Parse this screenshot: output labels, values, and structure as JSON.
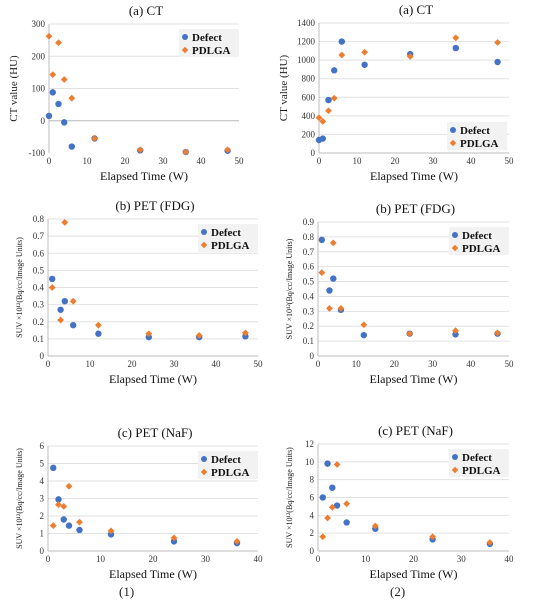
{
  "figure": {
    "column_labels": [
      "(1)",
      "(2)"
    ],
    "colors": {
      "Defect": "#4472C4",
      "PDLGA": "#ED7D31"
    }
  },
  "chart_data": [
    {
      "id": "ct-1",
      "type": "scatter",
      "title": "(a) CT",
      "xlabel": "Elapsed Time (W)",
      "ylabel": "CT value (HU)",
      "xlim": [
        0,
        50
      ],
      "ylim": [
        -100,
        300
      ],
      "xticks": [
        0,
        10,
        20,
        30,
        40,
        50
      ],
      "yticks": [
        -100,
        0,
        100,
        200,
        300
      ],
      "legend": "top-right",
      "series": [
        {
          "name": "Defect",
          "marker": "circle",
          "points": [
            [
              0,
              15
            ],
            [
              1,
              88
            ],
            [
              2.5,
              52
            ],
            [
              4,
              -5
            ],
            [
              6,
              -80
            ],
            [
              12,
              -55
            ],
            [
              24,
              -92
            ],
            [
              36,
              -97
            ],
            [
              47,
              -93
            ]
          ]
        },
        {
          "name": "PDLGA",
          "marker": "diamond",
          "points": [
            [
              0,
              262
            ],
            [
              1,
              143
            ],
            [
              2.5,
              242
            ],
            [
              4,
              128
            ],
            [
              6,
              70
            ],
            [
              12,
              -55
            ],
            [
              24,
              -90
            ],
            [
              36,
              -97
            ],
            [
              47,
              -90
            ]
          ]
        }
      ]
    },
    {
      "id": "ct-2",
      "type": "scatter",
      "title": "(a) CT",
      "xlabel": "Elapsed Time (W)",
      "ylabel": "CT value (HU)",
      "xlim": [
        0,
        50
      ],
      "ylim": [
        0,
        1400
      ],
      "xticks": [
        0,
        10,
        20,
        30,
        40,
        50
      ],
      "yticks": [
        0,
        200,
        400,
        600,
        800,
        1000,
        1200,
        1400
      ],
      "legend": "bottom-right",
      "series": [
        {
          "name": "Defect",
          "marker": "circle",
          "points": [
            [
              0,
              140
            ],
            [
              1,
              155
            ],
            [
              2.5,
              570
            ],
            [
              4,
              890
            ],
            [
              6,
              1200
            ],
            [
              12,
              950
            ],
            [
              24,
              1065
            ],
            [
              36,
              1130
            ],
            [
              47,
              980
            ]
          ]
        },
        {
          "name": "PDLGA",
          "marker": "diamond",
          "points": [
            [
              0,
              380
            ],
            [
              1,
              340
            ],
            [
              2.5,
              455
            ],
            [
              4,
              590
            ],
            [
              6,
              1055
            ],
            [
              12,
              1085
            ],
            [
              24,
              1040
            ],
            [
              36,
              1240
            ],
            [
              47,
              1190
            ]
          ]
        }
      ]
    },
    {
      "id": "fdg-1",
      "type": "scatter",
      "title": "(b) PET (FDG)",
      "xlabel": "Elapsed Time (W)",
      "ylabel": "SUV ×10¹²(Bq/cc/Image Units)",
      "xlim": [
        0,
        50
      ],
      "ylim": [
        0,
        0.8
      ],
      "xticks": [
        0,
        10,
        20,
        30,
        40,
        50
      ],
      "yticks": [
        0,
        0.1,
        0.2,
        0.3,
        0.4,
        0.5,
        0.6,
        0.7,
        0.8
      ],
      "legend": "top-right",
      "series": [
        {
          "name": "Defect",
          "marker": "circle",
          "points": [
            [
              1,
              0.45
            ],
            [
              3,
              0.27
            ],
            [
              4,
              0.32
            ],
            [
              6,
              0.18
            ],
            [
              12,
              0.13
            ],
            [
              24,
              0.11
            ],
            [
              36,
              0.11
            ],
            [
              47,
              0.115
            ]
          ]
        },
        {
          "name": "PDLGA",
          "marker": "diamond",
          "points": [
            [
              1,
              0.4
            ],
            [
              3,
              0.21
            ],
            [
              4,
              0.78
            ],
            [
              6,
              0.32
            ],
            [
              12,
              0.18
            ],
            [
              24,
              0.13
            ],
            [
              36,
              0.12
            ],
            [
              47,
              0.135
            ]
          ]
        }
      ]
    },
    {
      "id": "fdg-2",
      "type": "scatter",
      "title": "(b) PET (FDG)",
      "xlabel": "Elapsed Time (W)",
      "ylabel": "SUV ×10¹²(Bq/cc/Image Units)",
      "xlim": [
        0,
        50
      ],
      "ylim": [
        0,
        0.9
      ],
      "xticks": [
        0,
        10,
        20,
        30,
        40,
        50
      ],
      "yticks": [
        0,
        0.1,
        0.2,
        0.3,
        0.4,
        0.5,
        0.6,
        0.7,
        0.8,
        0.9
      ],
      "legend": "top-right",
      "series": [
        {
          "name": "Defect",
          "marker": "circle",
          "points": [
            [
              1,
              0.78
            ],
            [
              3,
              0.44
            ],
            [
              4,
              0.52
            ],
            [
              6,
              0.31
            ],
            [
              12,
              0.14
            ],
            [
              24,
              0.15
            ],
            [
              36,
              0.145
            ],
            [
              47,
              0.15
            ]
          ]
        },
        {
          "name": "PDLGA",
          "marker": "diamond",
          "points": [
            [
              1,
              0.56
            ],
            [
              3,
              0.32
            ],
            [
              4,
              0.76
            ],
            [
              6,
              0.32
            ],
            [
              12,
              0.21
            ],
            [
              24,
              0.15
            ],
            [
              36,
              0.17
            ],
            [
              47,
              0.155
            ]
          ]
        }
      ]
    },
    {
      "id": "naf-1",
      "type": "scatter",
      "title": "(c) PET (NaF)",
      "xlabel": "Elapsed Time (W)",
      "ylabel": "SUV ×10¹²(Bq/cc/Image Units)",
      "xlim": [
        0,
        40
      ],
      "ylim": [
        0,
        6
      ],
      "xticks": [
        0,
        10,
        20,
        30,
        40
      ],
      "yticks": [
        0,
        1,
        2,
        3,
        4,
        5,
        6
      ],
      "legend": "top-right",
      "series": [
        {
          "name": "Defect",
          "marker": "circle",
          "points": [
            [
              1,
              4.75
            ],
            [
              2,
              2.95
            ],
            [
              3,
              1.8
            ],
            [
              4,
              1.45
            ],
            [
              6,
              1.2
            ],
            [
              12,
              0.95
            ],
            [
              24,
              0.55
            ],
            [
              36,
              0.45
            ]
          ]
        },
        {
          "name": "PDLGA",
          "marker": "diamond",
          "points": [
            [
              1,
              1.45
            ],
            [
              2,
              2.65
            ],
            [
              3,
              2.55
            ],
            [
              4,
              3.7
            ],
            [
              6,
              1.65
            ],
            [
              12,
              1.15
            ],
            [
              24,
              0.75
            ],
            [
              36,
              0.55
            ]
          ]
        }
      ]
    },
    {
      "id": "naf-2",
      "type": "scatter",
      "title": "(c) PET (NaF)",
      "xlabel": "Elapsed Time (W)",
      "ylabel": "SUV ×10¹²(Bq/cc/Image Units)",
      "xlim": [
        0,
        40
      ],
      "ylim": [
        0,
        12
      ],
      "xticks": [
        0,
        10,
        20,
        30,
        40
      ],
      "yticks": [
        0,
        2,
        4,
        6,
        8,
        10,
        12
      ],
      "legend": "top-right",
      "series": [
        {
          "name": "Defect",
          "marker": "circle",
          "points": [
            [
              1,
              6.0
            ],
            [
              2,
              9.8
            ],
            [
              3,
              7.1
            ],
            [
              4,
              5.1
            ],
            [
              6,
              3.2
            ],
            [
              12,
              2.5
            ],
            [
              24,
              1.3
            ],
            [
              36,
              0.8
            ]
          ]
        },
        {
          "name": "PDLGA",
          "marker": "diamond",
          "points": [
            [
              1,
              1.6
            ],
            [
              2,
              3.7
            ],
            [
              3,
              4.9
            ],
            [
              4,
              9.7
            ],
            [
              6,
              5.3
            ],
            [
              12,
              2.8
            ],
            [
              24,
              1.6
            ],
            [
              36,
              0.95
            ]
          ]
        }
      ]
    }
  ]
}
